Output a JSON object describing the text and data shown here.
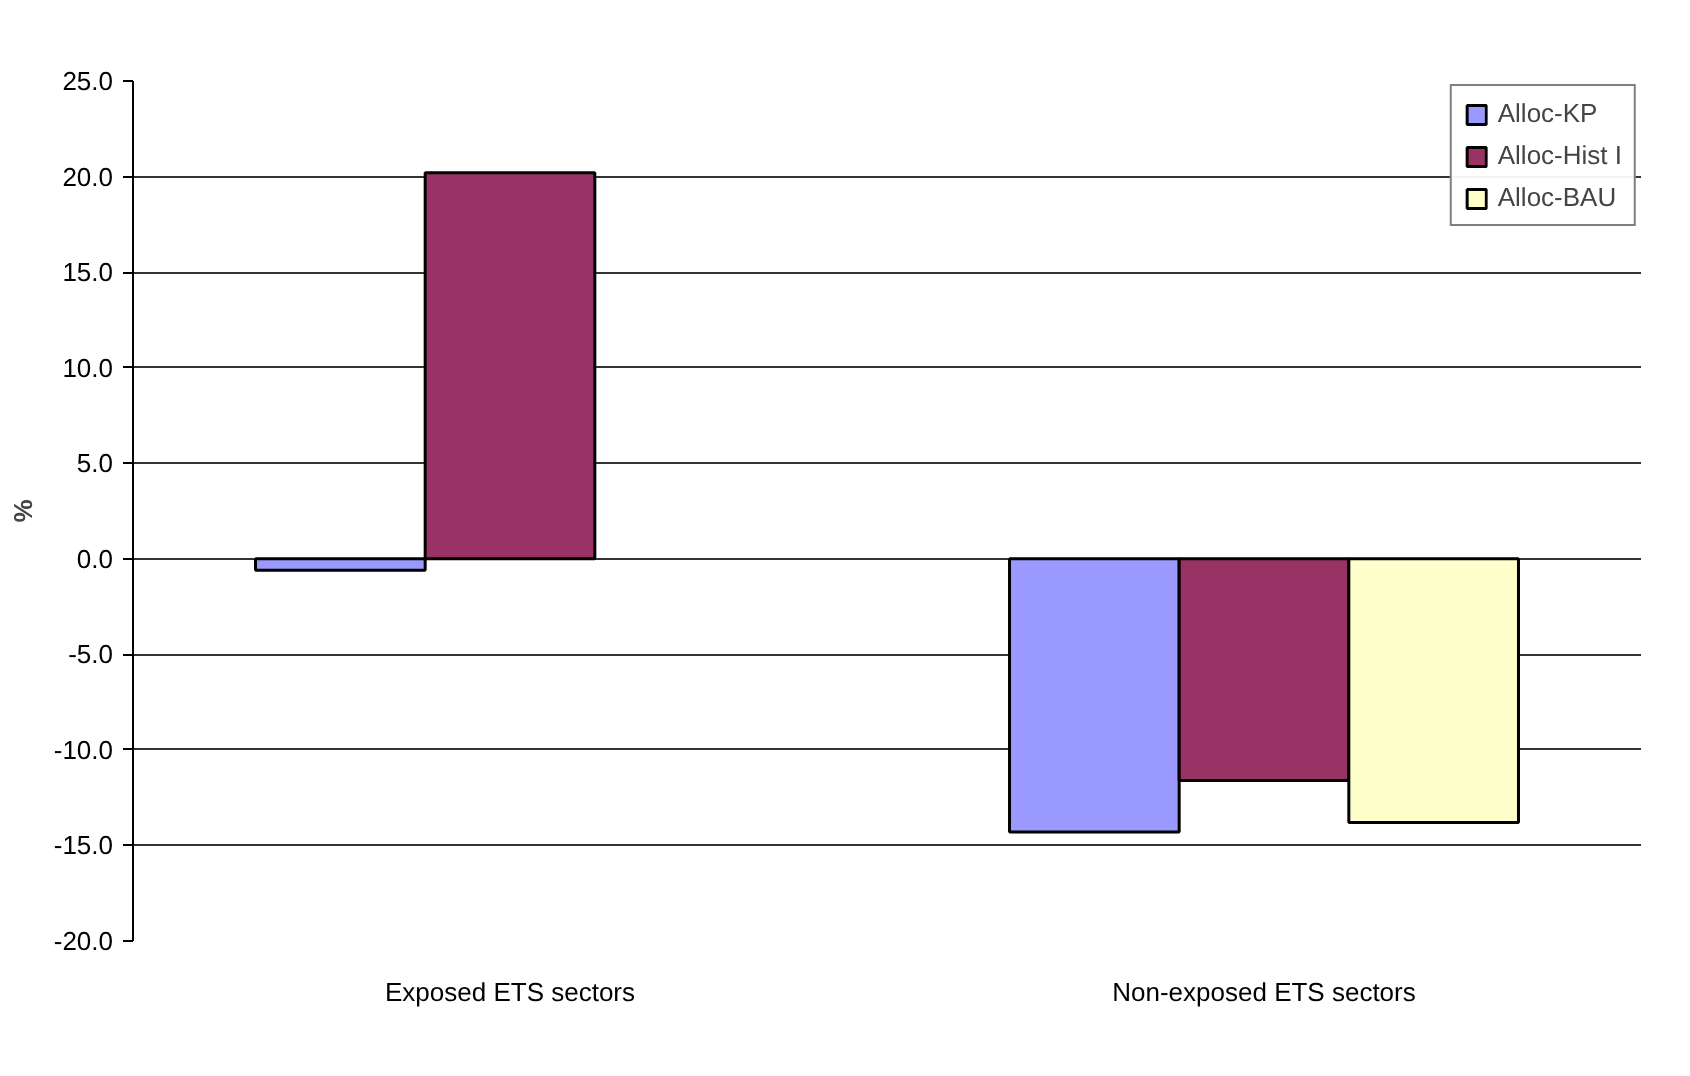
{
  "chart_data": {
    "type": "bar",
    "ylabel": "%",
    "categories": [
      "Exposed ETS sectors",
      "Non-exposed ETS sectors"
    ],
    "series": [
      {
        "name": "Alloc-KP",
        "color": "#9999ff",
        "values": [
          -0.6,
          -14.3
        ]
      },
      {
        "name": "Alloc-Hist I",
        "color": "#993366",
        "values": [
          20.2,
          -11.6
        ]
      },
      {
        "name": "Alloc-BAU",
        "color": "#ffffcc",
        "values": [
          null,
          -13.8
        ]
      }
    ],
    "ylim": [
      -20,
      25
    ],
    "yticks": [
      {
        "value": -20,
        "label": "-20.0"
      },
      {
        "value": -15,
        "label": "-15.0"
      },
      {
        "value": -10,
        "label": "-10.0"
      },
      {
        "value": -5,
        "label": "-5.0"
      },
      {
        "value": 0,
        "label": "0.0"
      },
      {
        "value": 5,
        "label": "5.0"
      },
      {
        "value": 10,
        "label": "10.0"
      },
      {
        "value": 15,
        "label": "15.0"
      },
      {
        "value": 20,
        "label": "20.0"
      },
      {
        "value": 25,
        "label": "25.0"
      }
    ],
    "grid": "y",
    "legend": "top right"
  }
}
